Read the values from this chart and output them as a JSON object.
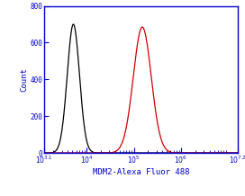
{
  "title": "",
  "xlabel": "MDM2-Alexa Fluor 488",
  "ylabel": "Count",
  "xlim_log": [
    3.1,
    7.2
  ],
  "ylim": [
    0,
    800
  ],
  "yticks": [
    0,
    200,
    400,
    600,
    800
  ],
  "xtick_positions": [
    3.1,
    4,
    5,
    6,
    7.2
  ],
  "black_peak_log": 3.72,
  "black_peak_height": 700,
  "black_sigma_log": 0.13,
  "red_peak_log": 5.18,
  "red_peak_height": 685,
  "red_sigma_log": 0.19,
  "black_color": "#000000",
  "red_color": "#cc0000",
  "spine_color": "#0000cc",
  "tick_color": "#0000cc",
  "label_color": "#0000cc",
  "background_color": "#ffffff",
  "axis_linewidth": 1.0,
  "line_linewidth": 0.9
}
